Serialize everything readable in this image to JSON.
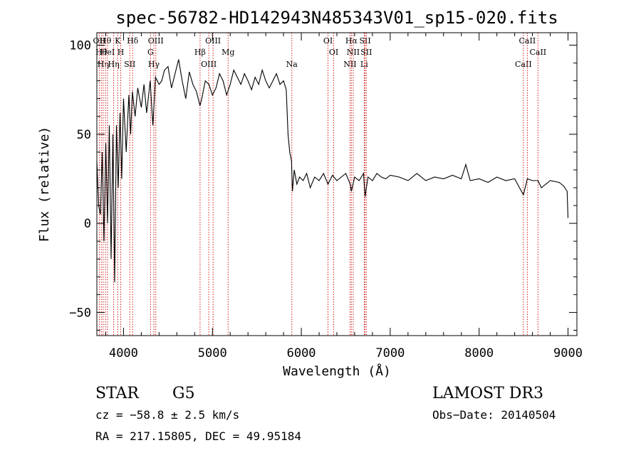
{
  "chart_data": {
    "type": "line",
    "title": "spec-56782-HD142943N485343V01_sp15-020.fits",
    "xlabel": "Wavelength (Å)",
    "ylabel": "Flux (relative)",
    "xlim": [
      3700,
      9100
    ],
    "ylim": [
      -63,
      107
    ],
    "xticks": [
      4000,
      5000,
      6000,
      7000,
      8000,
      9000
    ],
    "yticks": [
      -50,
      0,
      50,
      100
    ],
    "grid": false,
    "series": [
      {
        "color": "#000000",
        "x": [
          3700,
          3720,
          3740,
          3760,
          3780,
          3800,
          3820,
          3840,
          3860,
          3880,
          3900,
          3920,
          3940,
          3960,
          3980,
          4000,
          4030,
          4060,
          4080,
          4100,
          4130,
          4160,
          4200,
          4230,
          4260,
          4300,
          4330,
          4360,
          4400,
          4430,
          4460,
          4500,
          4540,
          4580,
          4620,
          4660,
          4700,
          4740,
          4780,
          4820,
          4860,
          4880,
          4920,
          4960,
          5000,
          5040,
          5080,
          5120,
          5160,
          5200,
          5240,
          5280,
          5320,
          5360,
          5400,
          5440,
          5480,
          5520,
          5560,
          5600,
          5640,
          5680,
          5720,
          5760,
          5800,
          5830,
          5850,
          5870,
          5890,
          5900,
          5920,
          5950,
          5980,
          6020,
          6060,
          6100,
          6150,
          6200,
          6250,
          6300,
          6350,
          6400,
          6450,
          6500,
          6550,
          6563,
          6600,
          6650,
          6700,
          6717,
          6750,
          6800,
          6850,
          6900,
          6950,
          7000,
          7100,
          7200,
          7300,
          7400,
          7500,
          7600,
          7700,
          7800,
          7850,
          7900,
          8000,
          8100,
          8200,
          8300,
          8400,
          8498,
          8542,
          8600,
          8662,
          8700,
          8800,
          8900,
          8950,
          8990,
          9000
        ],
        "y": [
          35,
          10,
          5,
          40,
          -10,
          45,
          0,
          55,
          -20,
          50,
          -33,
          55,
          20,
          62,
          25,
          70,
          40,
          72,
          50,
          74,
          60,
          76,
          65,
          78,
          62,
          80,
          55,
          82,
          78,
          80,
          86,
          88,
          76,
          84,
          92,
          80,
          70,
          85,
          78,
          74,
          66,
          70,
          80,
          78,
          72,
          76,
          84,
          80,
          72,
          78,
          86,
          82,
          78,
          84,
          80,
          75,
          82,
          78,
          86,
          80,
          76,
          80,
          84,
          78,
          80,
          75,
          50,
          40,
          35,
          18,
          30,
          22,
          26,
          24,
          28,
          20,
          26,
          24,
          28,
          22,
          27,
          24,
          26,
          28,
          22,
          18,
          26,
          24,
          28,
          15,
          26,
          24,
          28,
          26,
          25,
          27,
          26,
          24,
          28,
          24,
          26,
          25,
          27,
          25,
          33,
          24,
          25,
          23,
          26,
          24,
          25,
          16,
          25,
          24,
          24,
          20,
          24,
          23,
          21,
          18,
          3
        ]
      }
    ],
    "line_markers": [
      {
        "w": 3727,
        "label": "OII"
      },
      {
        "w": 3750,
        "label": "Hθ"
      },
      {
        "w": 3771,
        "label": "Hη"
      },
      {
        "w": 3797,
        "label": "Hθ"
      },
      {
        "w": 3820,
        "label": "HeI"
      },
      {
        "w": 3889,
        "label": "Hη"
      },
      {
        "w": 3934,
        "label": "K"
      },
      {
        "w": 3969,
        "label": "H"
      },
      {
        "w": 4070,
        "label": "SII"
      },
      {
        "w": 4102,
        "label": "Hδ"
      },
      {
        "w": 4304,
        "label": "G"
      },
      {
        "w": 4341,
        "label": "Hγ"
      },
      {
        "w": 4363,
        "label": "OIII"
      },
      {
        "w": 4861,
        "label": "Hβ"
      },
      {
        "w": 4959,
        "label": "OIII"
      },
      {
        "w": 5007,
        "label": "OIII"
      },
      {
        "w": 5176,
        "label": "Mg"
      },
      {
        "w": 5893,
        "label": "Na"
      },
      {
        "w": 6300,
        "label": "OI"
      },
      {
        "w": 6364,
        "label": "OI"
      },
      {
        "w": 6548,
        "label": "NII"
      },
      {
        "w": 6563,
        "label": "Hα"
      },
      {
        "w": 6584,
        "label": "NII"
      },
      {
        "w": 6707,
        "label": "Li"
      },
      {
        "w": 6717,
        "label": "SII"
      },
      {
        "w": 6731,
        "label": "SII"
      },
      {
        "w": 8498,
        "label": "CaII"
      },
      {
        "w": 8542,
        "label": "CaII"
      },
      {
        "w": 8662,
        "label": "CaII"
      }
    ]
  },
  "info": {
    "object_class": "STAR",
    "subclass": "G5",
    "survey": "LAMOST DR3",
    "cz": "cz = −58.8 ± 2.5 km/s",
    "obs_date": "Obs−Date: 20140504",
    "coords": "RA = 217.15805, DEC =  49.95184"
  }
}
